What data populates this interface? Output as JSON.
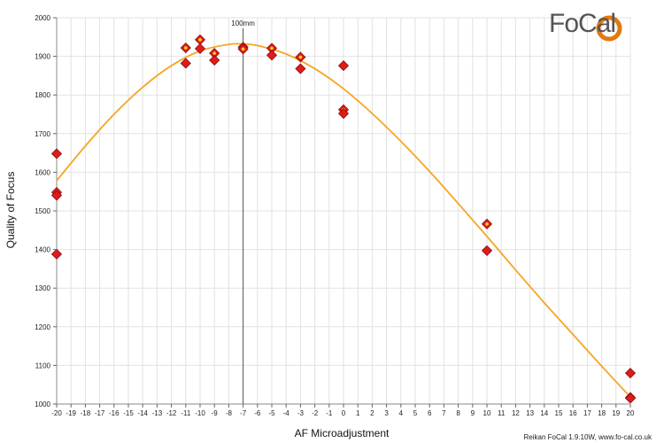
{
  "chart_data": {
    "type": "scatter",
    "xlabel": "AF Microadjustment",
    "ylabel": "Quality of Focus",
    "xlim": [
      -20,
      20
    ],
    "ylim": [
      1000,
      2000
    ],
    "x_ticks": [
      -20,
      -19,
      -18,
      -17,
      -16,
      -15,
      -14,
      -13,
      -12,
      -11,
      -10,
      -9,
      -8,
      -7,
      -6,
      -5,
      -4,
      -3,
      -2,
      -1,
      0,
      1,
      2,
      3,
      4,
      5,
      6,
      7,
      8,
      9,
      10,
      11,
      12,
      13,
      14,
      15,
      16,
      17,
      18,
      19,
      20
    ],
    "y_ticks": [
      1000,
      1100,
      1200,
      1300,
      1400,
      1500,
      1600,
      1700,
      1800,
      1900,
      2000
    ],
    "grid": true,
    "marker_line": {
      "x": -7,
      "label": "100mm"
    },
    "measurements": [
      {
        "x": -20,
        "y": 1648
      },
      {
        "x": -20,
        "y": 1548,
        "highlight": true
      },
      {
        "x": -20,
        "y": 1540
      },
      {
        "x": -20,
        "y": 1388
      },
      {
        "x": -11,
        "y": 1922,
        "highlight": true
      },
      {
        "x": -11,
        "y": 1882
      },
      {
        "x": -10,
        "y": 1943,
        "highlight": true
      },
      {
        "x": -10,
        "y": 1920
      },
      {
        "x": -9,
        "y": 1908,
        "highlight": true
      },
      {
        "x": -9,
        "y": 1890
      },
      {
        "x": -7,
        "y": 1924
      },
      {
        "x": -7,
        "y": 1919,
        "highlight": true
      },
      {
        "x": -5,
        "y": 1921,
        "highlight": true
      },
      {
        "x": -5,
        "y": 1903
      },
      {
        "x": -3,
        "y": 1898,
        "highlight": true
      },
      {
        "x": -3,
        "y": 1868
      },
      {
        "x": 0,
        "y": 1876
      },
      {
        "x": 0,
        "y": 1762,
        "highlight": true
      },
      {
        "x": 0,
        "y": 1752
      },
      {
        "x": 10,
        "y": 1466,
        "highlight": true
      },
      {
        "x": 10,
        "y": 1397
      },
      {
        "x": 20,
        "y": 1080
      },
      {
        "x": 20,
        "y": 1017,
        "highlight": true
      },
      {
        "x": 20,
        "y": 1015
      }
    ],
    "fit_curve": {
      "x": [
        -20,
        -18,
        -16,
        -14,
        -12,
        -10,
        -8,
        -7,
        -6,
        -4,
        -2,
        0,
        2,
        4,
        6,
        8,
        10,
        12,
        14,
        16,
        18,
        20
      ],
      "y": [
        1578,
        1668,
        1750,
        1820,
        1876,
        1914,
        1931,
        1932,
        1928,
        1906,
        1868,
        1816,
        1752,
        1680,
        1602,
        1519,
        1434,
        1347,
        1262,
        1180,
        1098,
        1018
      ]
    },
    "colors": {
      "curve": "#f5a623",
      "marker": "#e01b1b",
      "marker_edge": "#8b0d0d",
      "highlight": "#ffd21a",
      "grid": "#e2e2e2",
      "marker_line": "#555555"
    }
  },
  "logo": {
    "text": "FoCal"
  },
  "footer": {
    "text": "Reikan FoCal 1.9.10W, www.fo-cal.co.uk"
  }
}
